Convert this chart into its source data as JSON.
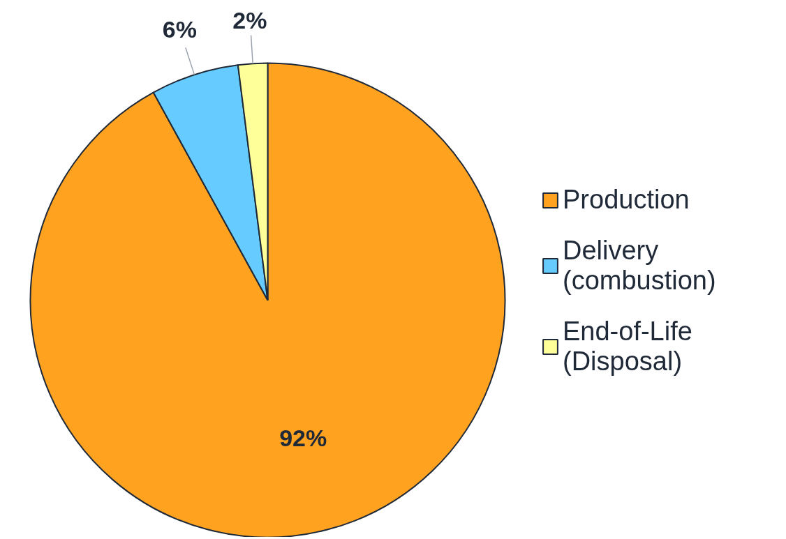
{
  "chart_data": {
    "type": "pie",
    "categories": [
      "Production",
      "Delivery (combustion)",
      "End-of-Life (Disposal)"
    ],
    "values": [
      92,
      6,
      2
    ],
    "colors": [
      "#ffa21f",
      "#66ccff",
      "#ffff99"
    ],
    "value_labels": [
      "92%",
      "6%",
      "2%"
    ],
    "legend": "right"
  }
}
